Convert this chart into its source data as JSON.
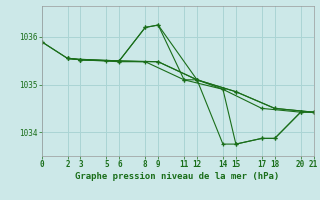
{
  "title": "Graphe pression niveau de la mer (hPa)",
  "background_color": "#cce8e8",
  "grid_color": "#aad4d4",
  "line_color": "#1a6e1a",
  "xlim": [
    0,
    21
  ],
  "ylim": [
    1033.5,
    1036.65
  ],
  "xticks": [
    0,
    2,
    3,
    5,
    6,
    8,
    9,
    11,
    12,
    14,
    15,
    17,
    18,
    20,
    21
  ],
  "yticks": [
    1034,
    1035,
    1036
  ],
  "lines": [
    {
      "x": [
        0,
        2,
        5,
        8,
        11,
        14,
        17,
        20
      ],
      "y": [
        1035.9,
        1035.55,
        1035.5,
        1035.48,
        1035.1,
        1034.9,
        1034.5,
        1034.42
      ]
    },
    {
      "x": [
        2,
        3,
        6,
        9,
        12,
        15,
        18,
        21
      ],
      "y": [
        1035.55,
        1035.52,
        1035.48,
        1035.48,
        1035.1,
        1034.85,
        1034.5,
        1034.42
      ]
    },
    {
      "x": [
        2,
        3,
        6,
        9,
        12,
        15,
        18,
        21
      ],
      "y": [
        1035.55,
        1035.52,
        1035.5,
        1035.48,
        1035.1,
        1034.85,
        1034.5,
        1034.42
      ]
    },
    {
      "x": [
        3,
        6,
        8,
        9,
        12,
        14,
        15,
        17,
        18,
        20,
        21
      ],
      "y": [
        1035.52,
        1035.5,
        1036.2,
        1036.25,
        1035.1,
        1034.9,
        1033.75,
        1033.87,
        1033.87,
        1034.42,
        1034.42
      ]
    },
    {
      "x": [
        0,
        2,
        3,
        6,
        8,
        9,
        11,
        12,
        14,
        15,
        17,
        18,
        20,
        21
      ],
      "y": [
        1035.9,
        1035.55,
        1035.52,
        1035.5,
        1036.2,
        1036.25,
        1035.1,
        1035.1,
        1033.75,
        1033.75,
        1033.87,
        1033.87,
        1034.42,
        1034.42
      ]
    }
  ],
  "ylabel_fontsize": 6,
  "xlabel_fontsize": 6.5,
  "tick_fontsize": 5.5,
  "title_fontsize": 6.5
}
